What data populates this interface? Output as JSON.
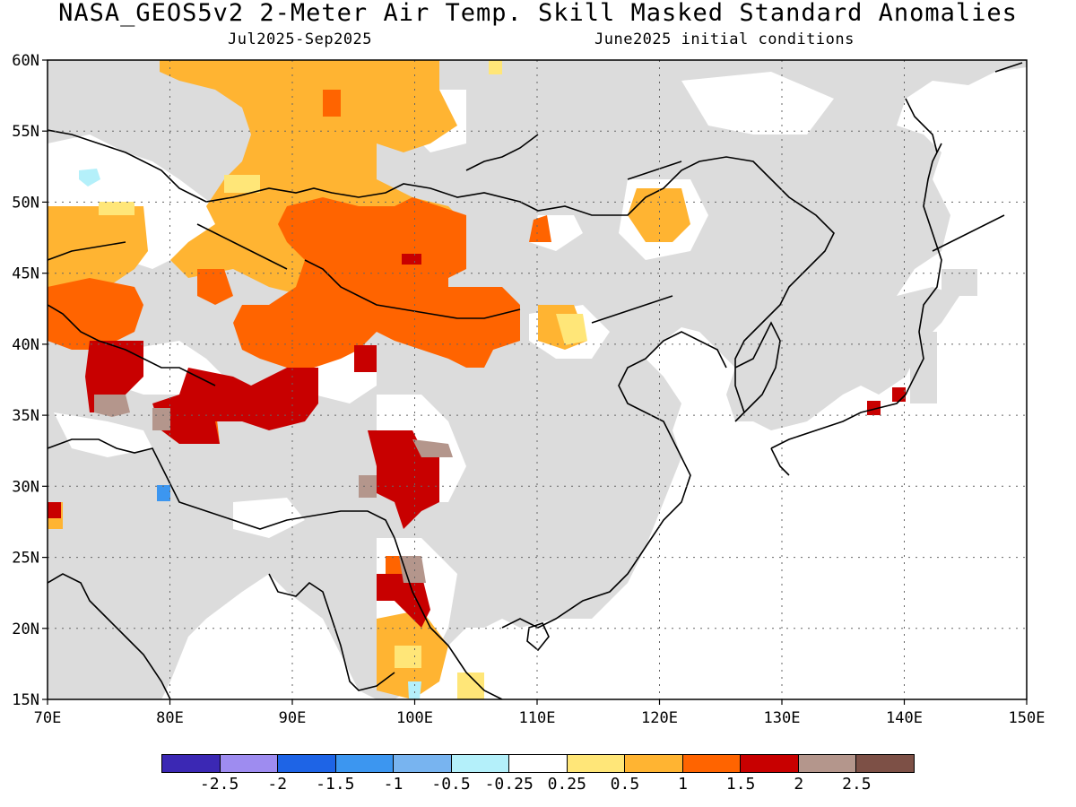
{
  "header": {
    "title": "NASA_GEOS5v2 2-Meter Air Temp. Skill Masked Standard Anomalies",
    "period": "Jul2025-Sep2025",
    "init": "June2025 initial conditions"
  },
  "map": {
    "lon_range": [
      70,
      150
    ],
    "lat_range": [
      15,
      60
    ],
    "lon_ticks": [
      "70E",
      "80E",
      "90E",
      "100E",
      "110E",
      "120E",
      "130E",
      "140E",
      "150E"
    ],
    "lat_ticks": [
      "15N",
      "20N",
      "25N",
      "30N",
      "35N",
      "40N",
      "45N",
      "50N",
      "55N",
      "60N"
    ],
    "masked_color": "#dcdcdc",
    "coastline_color": "#000000"
  },
  "colorbar": {
    "colors": [
      "#3b28b4",
      "#9e8cf0",
      "#1e64e6",
      "#3c96f0",
      "#78b4f0",
      "#b4f0fa",
      "#ffffff",
      "#ffe678",
      "#ffb432",
      "#ff6400",
      "#c80000",
      "#b4968c",
      "#7d5046"
    ],
    "labels": [
      "-2.5",
      "-2",
      "-1.5",
      "-1",
      "-0.5",
      "-0.25",
      "0.25",
      "0.5",
      "1",
      "1.5",
      "2",
      "2.5"
    ]
  }
}
